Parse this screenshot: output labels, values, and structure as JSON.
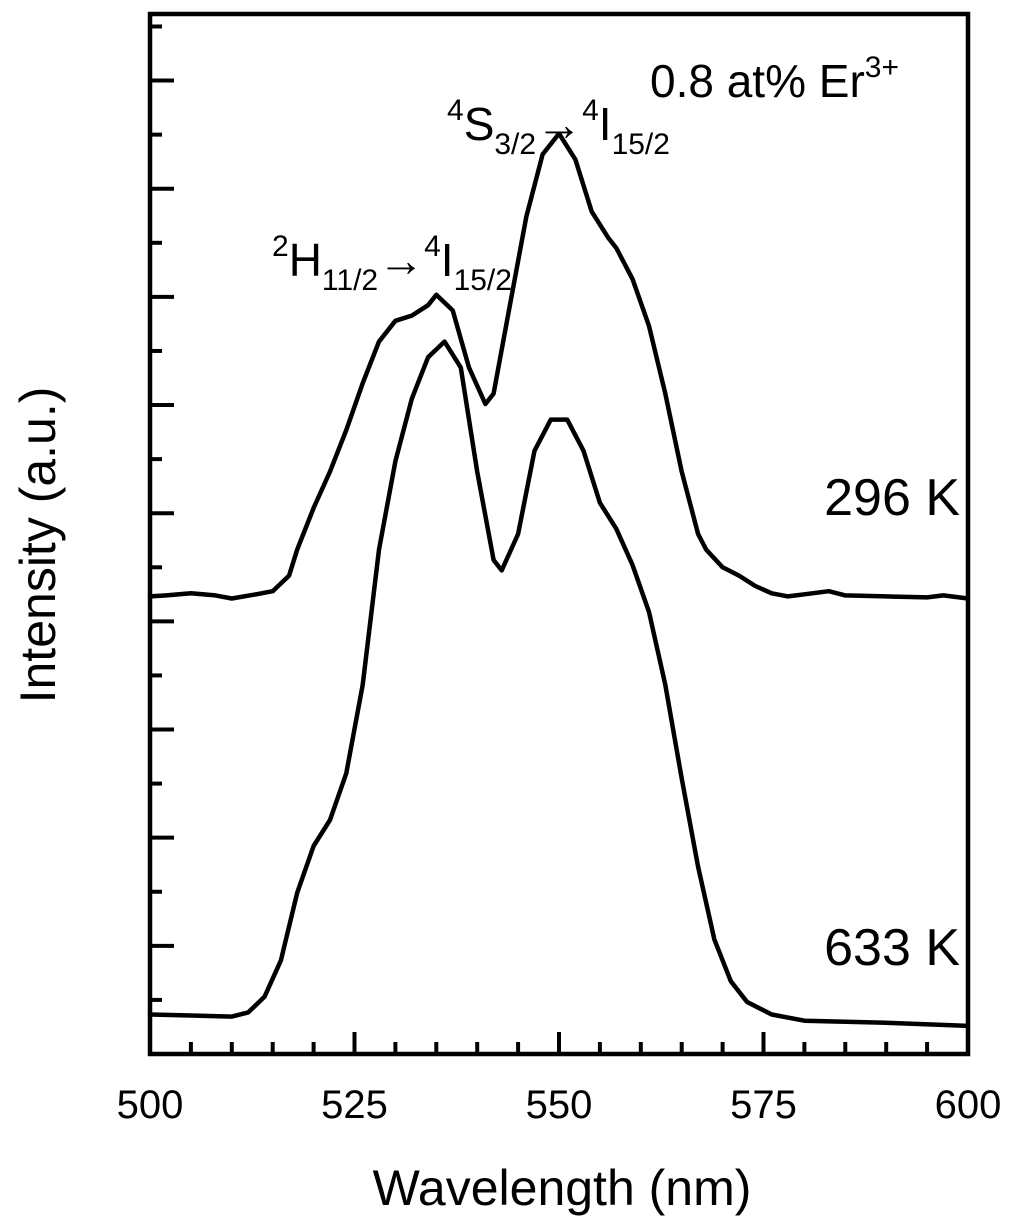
{
  "chart_data": {
    "type": "line",
    "title": "",
    "xlabel": "Wavelength (nm)",
    "ylabel": "Intensity (a.u.)",
    "xlim": [
      500,
      600
    ],
    "xticks": [
      500,
      525,
      550,
      575,
      600
    ],
    "ylim": [
      0,
      100
    ],
    "y_tick_labels_shown": false,
    "grid": false,
    "legend": "none",
    "series": [
      {
        "name": "296 K",
        "color": "#000000",
        "x": [
          500,
          502,
          505,
          508,
          510,
          513,
          515,
          517,
          518,
          520,
          522,
          524,
          526,
          528,
          530,
          532,
          534,
          535,
          537,
          539,
          541,
          542,
          544,
          546,
          548,
          550,
          552,
          554,
          556,
          557,
          559,
          561,
          563,
          565,
          567,
          568,
          570,
          572,
          574,
          576,
          578,
          580,
          583,
          585,
          590,
          595,
          597,
          600
        ],
        "y": [
          44.0,
          44.1,
          44.3,
          44.1,
          43.8,
          44.2,
          44.5,
          46.0,
          48.5,
          52.5,
          56.0,
          60.0,
          64.5,
          68.5,
          70.5,
          71.0,
          72.0,
          73.0,
          71.5,
          66.0,
          62.5,
          63.5,
          72.0,
          80.5,
          86.5,
          88.5,
          86.0,
          81.0,
          78.5,
          77.5,
          74.5,
          70.0,
          63.5,
          56.0,
          50.0,
          48.5,
          46.8,
          46.0,
          45.0,
          44.3,
          44.0,
          44.2,
          44.5,
          44.1,
          44.0,
          43.9,
          44.1,
          43.8
        ]
      },
      {
        "name": "633 K",
        "color": "#000000",
        "x": [
          500,
          505,
          510,
          512,
          514,
          516,
          518,
          520,
          522,
          524,
          526,
          528,
          530,
          532,
          534,
          536,
          538,
          540,
          542,
          543,
          545,
          547,
          549,
          551,
          553,
          555,
          557,
          559,
          561,
          563,
          565,
          567,
          569,
          571,
          573,
          576,
          580,
          590,
          600
        ],
        "y": [
          3.8,
          3.7,
          3.6,
          4.0,
          5.5,
          9.0,
          15.5,
          20.0,
          22.5,
          27.0,
          35.5,
          48.5,
          57.0,
          63.0,
          67.0,
          68.5,
          66.0,
          56.0,
          47.5,
          46.5,
          50.0,
          58.0,
          61.0,
          61.0,
          58.0,
          53.0,
          50.5,
          47.0,
          42.5,
          35.5,
          26.5,
          18.0,
          11.0,
          7.0,
          5.0,
          3.8,
          3.2,
          3.0,
          2.7
        ]
      }
    ],
    "annotations": {
      "sample": {
        "main": "0.8 at% Er",
        "sup": "3+"
      },
      "transition_s": {
        "sup1": "4",
        "main1": "S",
        "sub1": "3/2",
        "arrow": "→",
        "sup2": "4",
        "main2": "I",
        "sub2": "15/2"
      },
      "transition_h": {
        "sup1": "2",
        "main1": "H",
        "sub1": "11/2",
        "arrow": "→",
        "sup2": "4",
        "main2": "I",
        "sub2": "15/2"
      }
    }
  }
}
